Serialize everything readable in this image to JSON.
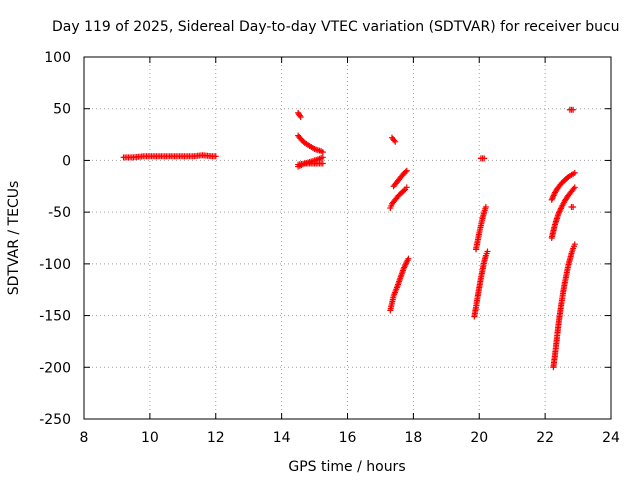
{
  "chart_data": {
    "type": "scatter",
    "title": "Day 119 of 2025, Sidereal Day-to-day VTEC variation (SDTVAR) for receiver bucu",
    "xlabel": "GPS time / hours",
    "ylabel": "SDTVAR / TECUs",
    "xlim": [
      8,
      24
    ],
    "ylim": [
      -250,
      100
    ],
    "xticks": [
      8,
      10,
      12,
      14,
      16,
      18,
      20,
      22,
      24
    ],
    "yticks": [
      -250,
      -200,
      -150,
      -100,
      -50,
      0,
      50,
      100
    ],
    "grid": true,
    "marker": "+",
    "colors": {
      "series": "#ff0000",
      "grid": "#a0a0a0",
      "axes": "#000000"
    },
    "series": [
      {
        "name": "SDTVAR",
        "segments": [
          {
            "x": [
              9.2,
              9.5,
              9.8,
              10.1,
              10.4,
              10.7,
              11.0,
              11.3,
              11.6,
              11.9,
              12.0
            ],
            "y": [
              3,
              3,
              4,
              4,
              4,
              4,
              4,
              4,
              5,
              4,
              4
            ]
          },
          {
            "x": [
              14.5,
              14.58
            ],
            "y": [
              46,
              42
            ]
          },
          {
            "x": [
              14.5,
              14.6,
              14.7,
              14.8,
              14.9,
              15.0,
              15.1,
              15.2,
              15.25
            ],
            "y": [
              24,
              20,
              17,
              15,
              13,
              11,
              10,
              9,
              8
            ]
          },
          {
            "x": [
              14.5,
              14.7,
              14.9,
              15.1,
              15.25
            ],
            "y": [
              -6,
              -3,
              -1,
              1,
              3
            ]
          },
          {
            "x": [
              14.5,
              14.7,
              14.9,
              15.1,
              15.25
            ],
            "y": [
              -4,
              -3,
              -3,
              -3,
              -3
            ]
          },
          {
            "x": [
              17.35,
              17.45
            ],
            "y": [
              22,
              18
            ]
          },
          {
            "x": [
              17.4,
              17.5,
              17.6,
              17.7,
              17.8
            ],
            "y": [
              -25,
              -21,
              -17,
              -13,
              -10
            ]
          },
          {
            "x": [
              17.3,
              17.35,
              17.45,
              17.55,
              17.65,
              17.75,
              17.8
            ],
            "y": [
              -46,
              -42,
              -38,
              -34,
              -31,
              -28,
              -26
            ]
          },
          {
            "x": [
              17.3,
              17.35,
              17.4,
              17.5,
              17.6,
              17.7,
              17.8,
              17.85
            ],
            "y": [
              -145,
              -138,
              -131,
              -123,
              -114,
              -105,
              -98,
              -95
            ]
          },
          {
            "x": [
              20.05,
              20.15
            ],
            "y": [
              2,
              2
            ]
          },
          {
            "x": [
              19.9,
              19.95,
              20.0,
              20.05,
              20.1,
              20.15,
              20.2
            ],
            "y": [
              -86,
              -78,
              -70,
              -63,
              -56,
              -50,
              -45
            ]
          },
          {
            "x": [
              19.85,
              19.9,
              19.95,
              20.0,
              20.05,
              20.1,
              20.15,
              20.2,
              20.25
            ],
            "y": [
              -151,
              -142,
              -132,
              -123,
              -114,
              -106,
              -98,
              -92,
              -88
            ]
          },
          {
            "x": [
              22.2,
              22.3,
              22.4,
              22.5,
              22.6,
              22.7,
              22.8,
              22.9
            ],
            "y": [
              -38,
              -31,
              -26,
              -22,
              -19,
              -16,
              -14,
              -12
            ]
          },
          {
            "x": [
              22.2,
              22.3,
              22.4,
              22.5,
              22.6,
              22.7,
              22.8,
              22.9
            ],
            "y": [
              -75,
              -62,
              -52,
              -45,
              -39,
              -34,
              -30,
              -26
            ]
          },
          {
            "x": [
              22.25,
              22.3,
              22.35,
              22.4,
              22.45,
              22.5,
              22.55,
              22.6,
              22.65,
              22.7,
              22.75,
              22.8,
              22.85,
              22.9
            ],
            "y": [
              -200,
              -188,
              -174,
              -160,
              -148,
              -137,
              -127,
              -118,
              -110,
              -102,
              -96,
              -90,
              -85,
              -81
            ]
          },
          {
            "x": [
              22.75,
              22.85
            ],
            "y": [
              49,
              49
            ]
          },
          {
            "x": [
              22.8,
              22.85
            ],
            "y": [
              -45,
              -45
            ]
          }
        ]
      }
    ]
  }
}
